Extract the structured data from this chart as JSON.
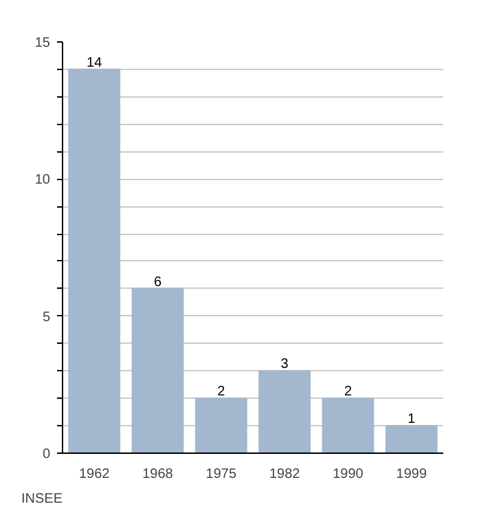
{
  "chart_data": {
    "type": "bar",
    "categories": [
      "1962",
      "1968",
      "1975",
      "1982",
      "1990",
      "1999"
    ],
    "values": [
      14,
      6,
      2,
      3,
      2,
      1
    ],
    "color": "#a3b8cf",
    "data_labels": true,
    "ylim": [
      0,
      15
    ],
    "yticks": [
      0,
      {
        "value": 1,
        "label": null
      },
      {
        "value": 2,
        "label": null
      },
      {
        "value": 3,
        "label": null
      },
      {
        "value": 4,
        "label": null
      },
      5,
      {
        "value": 6,
        "label": null
      },
      {
        "value": 7,
        "label": null
      },
      {
        "value": 8,
        "label": null
      },
      {
        "value": 9,
        "label": null
      },
      10,
      {
        "value": 11,
        "label": null
      },
      {
        "value": 12,
        "label": null
      },
      {
        "value": 13,
        "label": null
      },
      {
        "value": 14,
        "label": null
      },
      15
    ],
    "grid": "y",
    "annotations": [
      "INSEE"
    ]
  }
}
